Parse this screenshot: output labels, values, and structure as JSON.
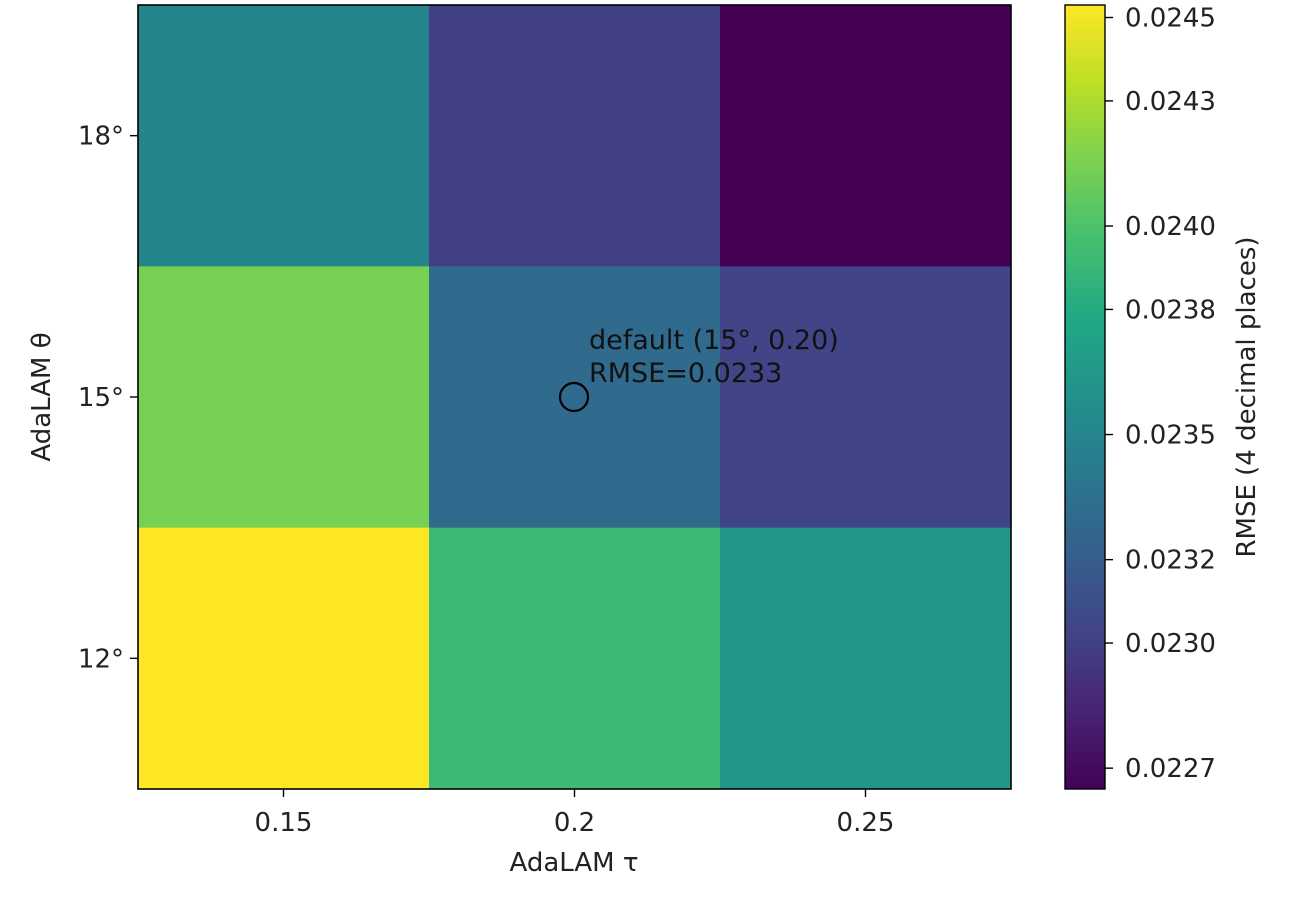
{
  "chart_data": {
    "type": "heatmap",
    "xlabel": "AdaLAM τ",
    "ylabel": "AdaLAM θ",
    "x_categories": [
      "0.15",
      "0.2",
      "0.25"
    ],
    "y_categories": [
      "18°",
      "15°",
      "12°"
    ],
    "values": [
      [
        0.0235,
        0.023,
        0.02265
      ],
      [
        0.02414,
        0.0233,
        0.02303
      ],
      [
        0.02453,
        0.02392,
        0.02364
      ]
    ],
    "colormap": "viridis",
    "colorbar": {
      "label": "RMSE (4 decimal places)",
      "range": [
        0.02265,
        0.02453
      ],
      "ticks": [
        0.0227,
        0.023,
        0.0232,
        0.0235,
        0.0238,
        0.024,
        0.0243,
        0.0245
      ],
      "tick_labels": [
        "0.0227",
        "0.0230",
        "0.0232",
        "0.0235",
        "0.0238",
        "0.0240",
        "0.0243",
        "0.0245"
      ]
    },
    "annotation": {
      "marker": "circle",
      "at": {
        "x": "0.2",
        "y": "15°"
      },
      "lines": [
        "default (15°, 0.20)",
        "RMSE=0.0233"
      ]
    }
  }
}
